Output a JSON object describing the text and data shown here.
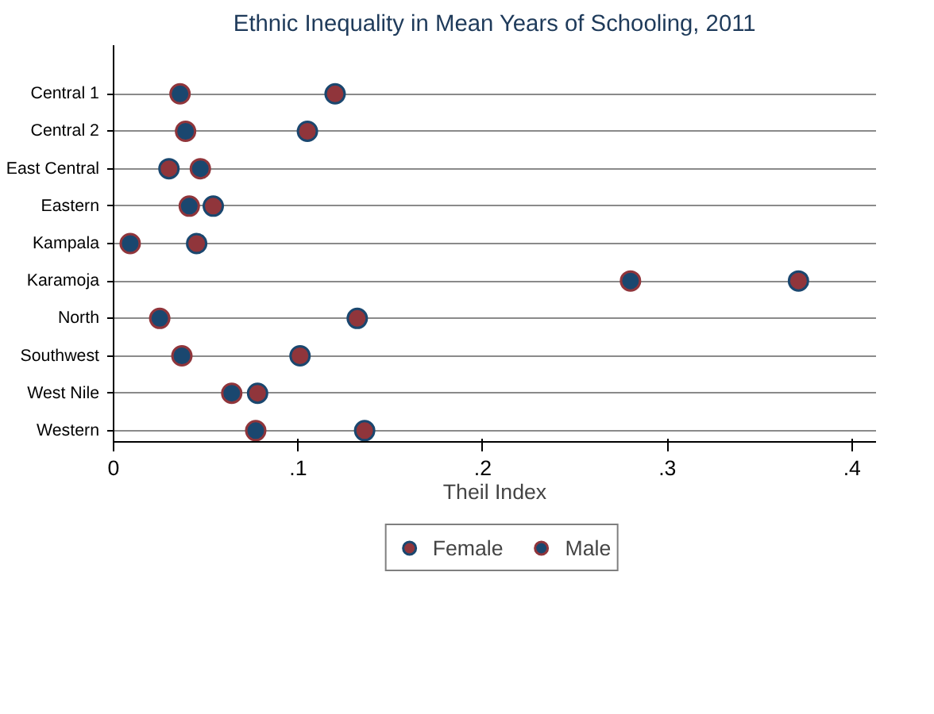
{
  "chart_data": {
    "type": "scatter",
    "title": "Ethnic Inequality in Mean Years of Schooling, 2011",
    "xlabel": "Theil Index",
    "orientation": "horizontal",
    "categories": [
      "Central 1",
      "Central 2",
      "East Central",
      "Eastern",
      "Kampala",
      "Karamoja",
      "North",
      "Southwest",
      "West Nile",
      "Western"
    ],
    "series": [
      {
        "name": "Female",
        "color": "#90353b",
        "values": [
          0.12,
          0.105,
          0.03,
          0.054,
          0.045,
          0.371,
          0.132,
          0.101,
          0.078,
          0.136
        ]
      },
      {
        "name": "Male",
        "color": "#1a476f",
        "values": [
          0.036,
          0.039,
          0.047,
          0.041,
          0.009,
          0.28,
          0.025,
          0.037,
          0.064,
          0.077
        ]
      }
    ],
    "xlim": [
      0,
      0.413
    ],
    "xticks": [
      0,
      {
        "value": 0.1,
        "label": ".1"
      },
      {
        "value": 0.2,
        "label": ".2"
      },
      {
        "value": 0.3,
        "label": ".3"
      },
      {
        "value": 0.4,
        "label": ".4"
      }
    ],
    "grid": "y",
    "legend": "bottom",
    "marker": "circle"
  }
}
